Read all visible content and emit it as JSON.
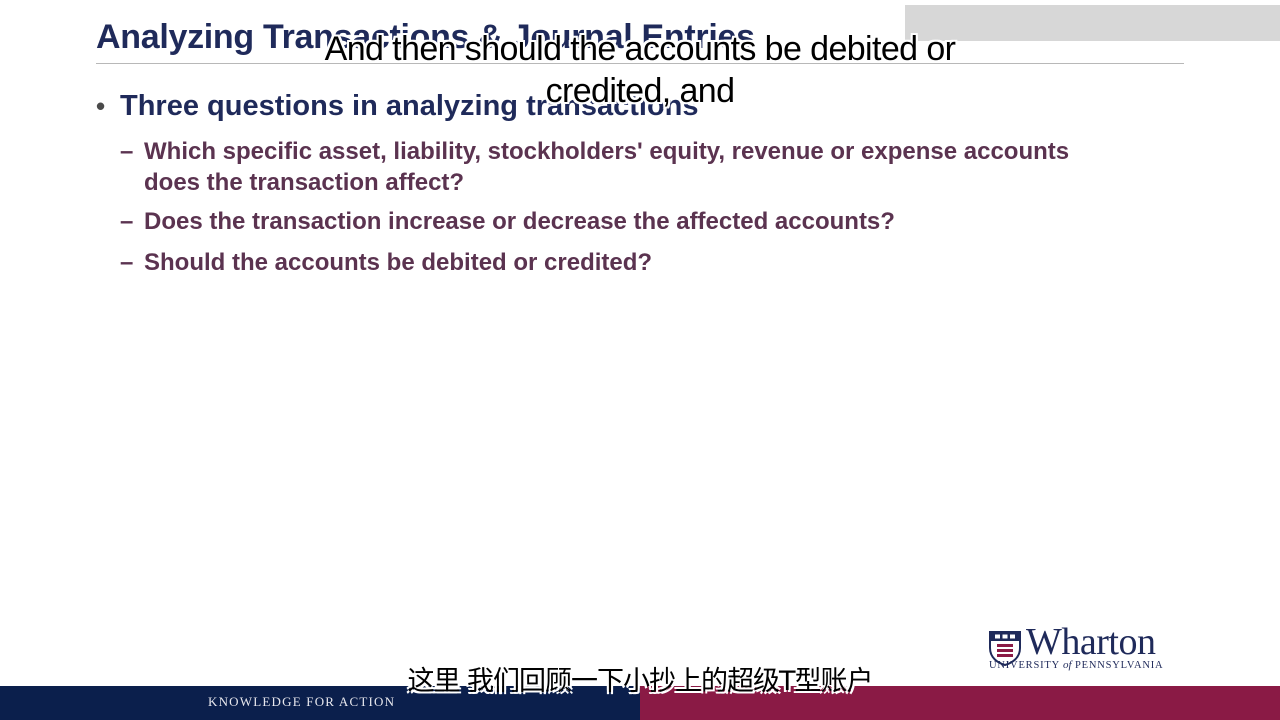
{
  "slide": {
    "title": "Analyzing Transactions & Journal Entries",
    "bullet": "Three questions in analyzing transactions",
    "subitems": [
      {
        "line1": "Which specific asset, liability, stockholders' equity, revenue or expense accounts",
        "line2": "does the transaction affect?"
      },
      {
        "line1": "Does the transaction increase or decrease the affected accounts?"
      },
      {
        "line1": "Should the accounts be debited or credited?"
      }
    ]
  },
  "captions": {
    "english_line1": "And then should the accounts be debited or",
    "english_line2": "credited, and",
    "chinese": "这里 我们回顾一下小抄上的超级T型账户"
  },
  "logo": {
    "name": "Wharton",
    "sub_before": "UNIVERSITY ",
    "sub_of": "of",
    "sub_after": " PENNSYLVANIA"
  },
  "footer": {
    "tagline": "KNOWLEDGE FOR ACTION",
    "left_color": "#0b1f4c",
    "right_color": "#8a1a45"
  },
  "icons": [
    "bullet-dot-icon",
    "dash-icon",
    "penn-shield-icon"
  ]
}
